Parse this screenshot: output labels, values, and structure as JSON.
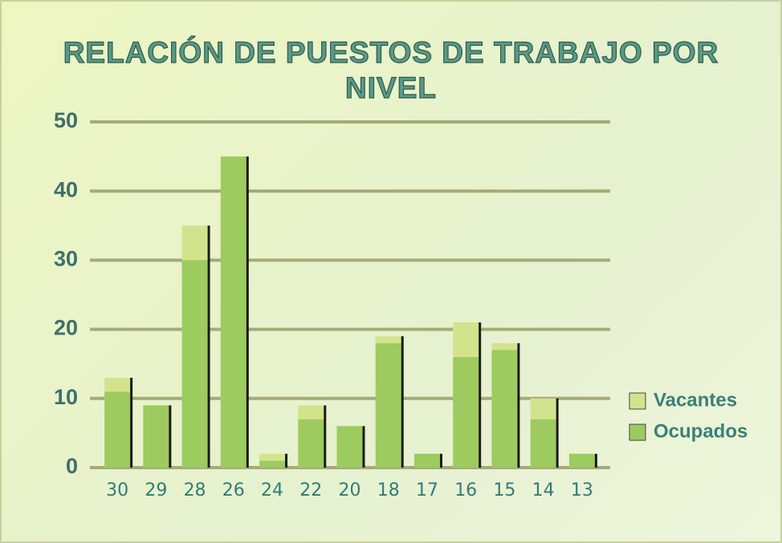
{
  "chart_data": {
    "type": "stacked_bar",
    "title": "RELACIÓN DE PUESTOS DE TRABAJO POR NIVEL",
    "categories": [
      "30",
      "29",
      "28",
      "26",
      "24",
      "22",
      "20",
      "18",
      "17",
      "16",
      "15",
      "14",
      "13"
    ],
    "series": [
      {
        "name": "Ocupados",
        "color": "#9dcb5f",
        "values": [
          11,
          9,
          30,
          45,
          1,
          7,
          6,
          18,
          2,
          16,
          17,
          7,
          2
        ]
      },
      {
        "name": "Vacantes",
        "color": "#d3e38d",
        "values": [
          2,
          0,
          5,
          0,
          1,
          2,
          0,
          1,
          0,
          5,
          1,
          3,
          0
        ]
      }
    ],
    "ylim": [
      0,
      50
    ],
    "yticks": [
      0,
      10,
      20,
      30,
      40,
      50
    ],
    "grid": true,
    "legend": "right"
  }
}
